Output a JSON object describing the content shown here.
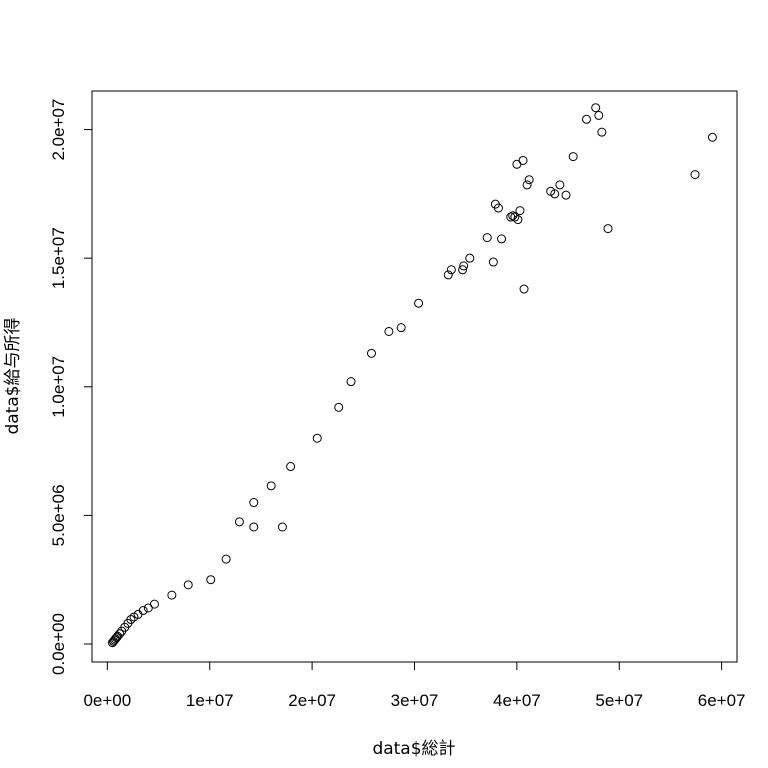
{
  "chart_data": {
    "type": "scatter",
    "title": "",
    "xlabel": "data$総計",
    "ylabel": "data$給与所得",
    "xlim": [
      -1500000,
      61500000
    ],
    "ylim": [
      -700000,
      21500000
    ],
    "grid": false,
    "legend": "none",
    "marker": "open-circle",
    "x_ticks": [
      {
        "value": 0,
        "label": "0e+00"
      },
      {
        "value": 10000000,
        "label": "1e+07"
      },
      {
        "value": 20000000,
        "label": "2e+07"
      },
      {
        "value": 30000000,
        "label": "3e+07"
      },
      {
        "value": 40000000,
        "label": "4e+07"
      },
      {
        "value": 50000000,
        "label": "5e+07"
      },
      {
        "value": 60000000,
        "label": "6e+07"
      }
    ],
    "y_ticks": [
      {
        "value": 0,
        "label": "0.0e+00"
      },
      {
        "value": 5000000,
        "label": "5.0e+06"
      },
      {
        "value": 10000000,
        "label": "1.0e+07"
      },
      {
        "value": 15000000,
        "label": "1.5e+07"
      },
      {
        "value": 20000000,
        "label": "2.0e+07"
      }
    ],
    "x": [
      500000,
      600000,
      700000,
      800000,
      900000,
      1000000,
      1200000,
      1400000,
      1700000,
      2000000,
      2300000,
      2600000,
      3000000,
      3500000,
      4000000,
      4600000,
      6300000,
      7900000,
      10100000,
      11600000,
      12900000,
      14300000,
      14300000,
      16000000,
      17100000,
      17900000,
      20500000,
      22600000,
      23800000,
      25800000,
      27500000,
      28700000,
      30400000,
      33300000,
      33600000,
      34700000,
      34800000,
      35400000,
      37100000,
      37700000,
      37900000,
      38200000,
      38500000,
      39400000,
      39600000,
      39800000,
      40000000,
      40100000,
      40300000,
      40600000,
      40700000,
      41000000,
      41200000,
      43300000,
      43700000,
      44200000,
      44800000,
      45500000,
      46800000,
      47700000,
      48000000,
      48300000,
      48900000,
      57400000,
      59100000
    ],
    "y": [
      50000,
      100000,
      150000,
      200000,
      250000,
      300000,
      400000,
      500000,
      650000,
      800000,
      950000,
      1050000,
      1150000,
      1300000,
      1400000,
      1550000,
      1900000,
      2300000,
      2500000,
      3300000,
      4750000,
      4550000,
      5500000,
      6150000,
      4550000,
      6900000,
      8000000,
      9200000,
      10200000,
      11300000,
      12150000,
      12300000,
      13250000,
      14350000,
      14550000,
      14550000,
      14700000,
      15000000,
      15800000,
      14850000,
      17100000,
      16950000,
      15750000,
      16600000,
      16650000,
      16600000,
      18650000,
      16500000,
      16850000,
      18800000,
      13800000,
      17850000,
      18050000,
      17600000,
      17500000,
      17850000,
      17450000,
      18950000,
      20400000,
      20850000,
      20550000,
      19900000,
      16150000,
      18250000,
      19700000
    ]
  }
}
